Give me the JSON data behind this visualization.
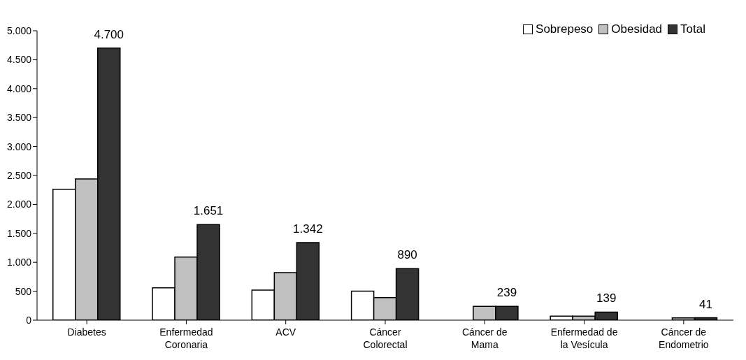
{
  "chart_data": {
    "type": "bar",
    "categories": [
      "Diabetes",
      "Enfermedad Coronaria",
      "ACV",
      "Cáncer Colorectal",
      "Cáncer de Mama",
      "Enfermedad de la Vesícula",
      "Cáncer de Endometrio"
    ],
    "series": [
      {
        "name": "Sobrepeso",
        "color": "#ffffff",
        "values": [
          2260,
          560,
          520,
          500,
          0,
          70,
          0
        ]
      },
      {
        "name": "Obesidad",
        "color": "#c0c0c0",
        "values": [
          2440,
          1090,
          820,
          390,
          240,
          70,
          40
        ]
      },
      {
        "name": "Total",
        "color": "#333333",
        "values": [
          4700,
          1651,
          1342,
          890,
          239,
          139,
          41
        ],
        "value_labels": [
          "4.700",
          "1.651",
          "1.342",
          "890",
          "239",
          "139",
          "41"
        ]
      }
    ],
    "ylim": [
      0,
      5000
    ],
    "yticks": [
      0,
      500,
      {
        "value": 1000,
        "label": "1.000"
      },
      {
        "value": 1500,
        "label": "1.500"
      },
      {
        "value": 2000,
        "label": "2.000"
      },
      {
        "value": 2500,
        "label": "2.500"
      },
      {
        "value": 3000,
        "label": "3.000"
      },
      {
        "value": 3500,
        "label": "3.500"
      },
      {
        "value": 4000,
        "label": "4.000"
      },
      {
        "value": 4500,
        "label": "4.500"
      },
      {
        "value": 5000,
        "label": "5.000"
      }
    ],
    "grid": false,
    "legend": "top right"
  }
}
